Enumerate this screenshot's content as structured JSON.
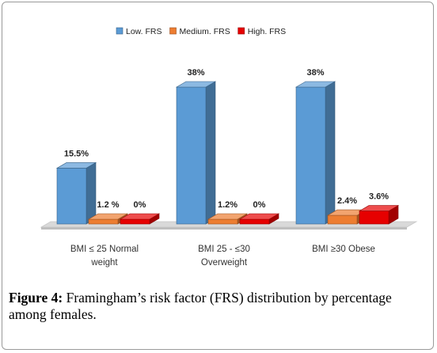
{
  "chart_data": {
    "type": "bar",
    "categories": [
      {
        "line1": "BMI ≤ 25 Normal",
        "line2": "weight"
      },
      {
        "line1": "BMI 25 - ≤30",
        "line2": "Overweight"
      },
      {
        "line1": "BMI ≥30 Obese",
        "line2": ""
      }
    ],
    "series": [
      {
        "name": "Low. FRS",
        "color": "#5b9bd5",
        "values": [
          15.5,
          38,
          38
        ],
        "labels": [
          "15.5%",
          "38%",
          "38%"
        ]
      },
      {
        "name": "Medium. FRS",
        "color": "#ed7d31",
        "values": [
          1.2,
          1.2,
          2.4
        ],
        "labels": [
          "1.2 %",
          "1.2%",
          "2.4%"
        ]
      },
      {
        "name": "High. FRS",
        "color": "#e60000",
        "values": [
          0,
          0,
          3.6
        ],
        "labels": [
          "0%",
          "0%",
          "3.6%"
        ]
      }
    ],
    "ylim": [
      0,
      38
    ],
    "legend": "top-center",
    "grid": false,
    "style": "3d-column"
  },
  "caption": {
    "label": "Figure 4:",
    "text": " Framingham’s risk factor (FRS) distribution by percentage among females."
  }
}
